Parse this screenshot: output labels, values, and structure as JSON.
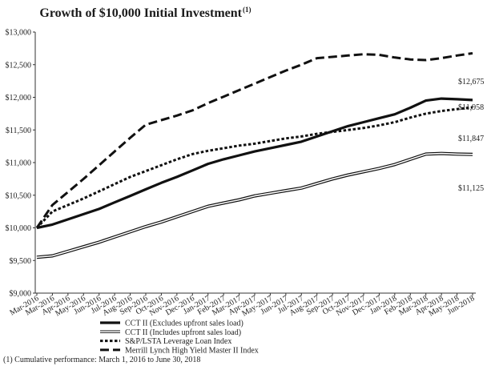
{
  "chart_data": {
    "type": "line",
    "title": "Growth of $10,000 Initial Investment",
    "title_superscript": "(1)",
    "footnote": "(1) Cumulative performance: March 1, 2016 to June 30, 2018",
    "ylim": [
      9000,
      13000
    ],
    "yticks": [
      "$9,000",
      "$9,500",
      "$10,000",
      "$10,500",
      "$11,000",
      "$11,500",
      "$12,000",
      "$12,500",
      "$13,000"
    ],
    "categories": [
      "Mar-2016",
      "Mar-2016",
      "Apr-2016",
      "May-2016",
      "Jun-2016",
      "Jul-2016",
      "Aug-2016",
      "Sep-2016",
      "Oct-2016",
      "Nov-2016",
      "Dec-2016",
      "Jan-2017",
      "Feb-2017",
      "Mar-2017",
      "Apr-2017",
      "May-2017",
      "Jun-2017",
      "Jul-2017",
      "Aug-2017",
      "Sep-2017",
      "Oct-2017",
      "Nov-2017",
      "Dec-2017",
      "Jan-2018",
      "Feb-2018",
      "Mar-2018",
      "Apr-2018",
      "May-2018",
      "Jun-2018"
    ],
    "grid": false,
    "legend_placement": "bottom-left",
    "series": [
      {
        "name": "CCT II (Excludes upfront sales load)",
        "style": "thick-solid",
        "color": "#111111",
        "end_label": "$11,958",
        "values": [
          10000,
          10050,
          10130,
          10210,
          10290,
          10390,
          10490,
          10590,
          10690,
          10780,
          10880,
          10980,
          11050,
          11110,
          11170,
          11220,
          11270,
          11320,
          11400,
          11480,
          11560,
          11620,
          11680,
          11740,
          11840,
          11950,
          11980,
          11970,
          11958
        ]
      },
      {
        "name": "CCT II (Includes upfront sales load)",
        "style": "double-thin",
        "color": "#111111",
        "end_label": "$11,125",
        "values": [
          9550,
          9570,
          9640,
          9710,
          9780,
          9860,
          9940,
          10020,
          10090,
          10170,
          10250,
          10330,
          10380,
          10430,
          10490,
          10530,
          10570,
          10610,
          10680,
          10750,
          10810,
          10860,
          10910,
          10970,
          11050,
          11130,
          11140,
          11130,
          11125
        ]
      },
      {
        "name": "S&P/LSTA Leverage Loan Index",
        "style": "dotted",
        "color": "#111111",
        "end_label": "$11,847",
        "values": [
          10000,
          10250,
          10350,
          10450,
          10560,
          10670,
          10780,
          10870,
          10960,
          11050,
          11130,
          11180,
          11220,
          11260,
          11290,
          11330,
          11370,
          11400,
          11440,
          11470,
          11500,
          11530,
          11570,
          11620,
          11690,
          11750,
          11790,
          11820,
          11847
        ]
      },
      {
        "name": "Merrill Lynch High Yield Master II Index",
        "style": "dashed",
        "color": "#111111",
        "end_label": "$12,675",
        "values": [
          10000,
          10350,
          10550,
          10750,
          10960,
          11170,
          11380,
          11580,
          11650,
          11720,
          11800,
          11910,
          12010,
          12110,
          12210,
          12310,
          12410,
          12500,
          12600,
          12620,
          12640,
          12660,
          12650,
          12610,
          12580,
          12570,
          12600,
          12640,
          12675
        ]
      }
    ]
  }
}
